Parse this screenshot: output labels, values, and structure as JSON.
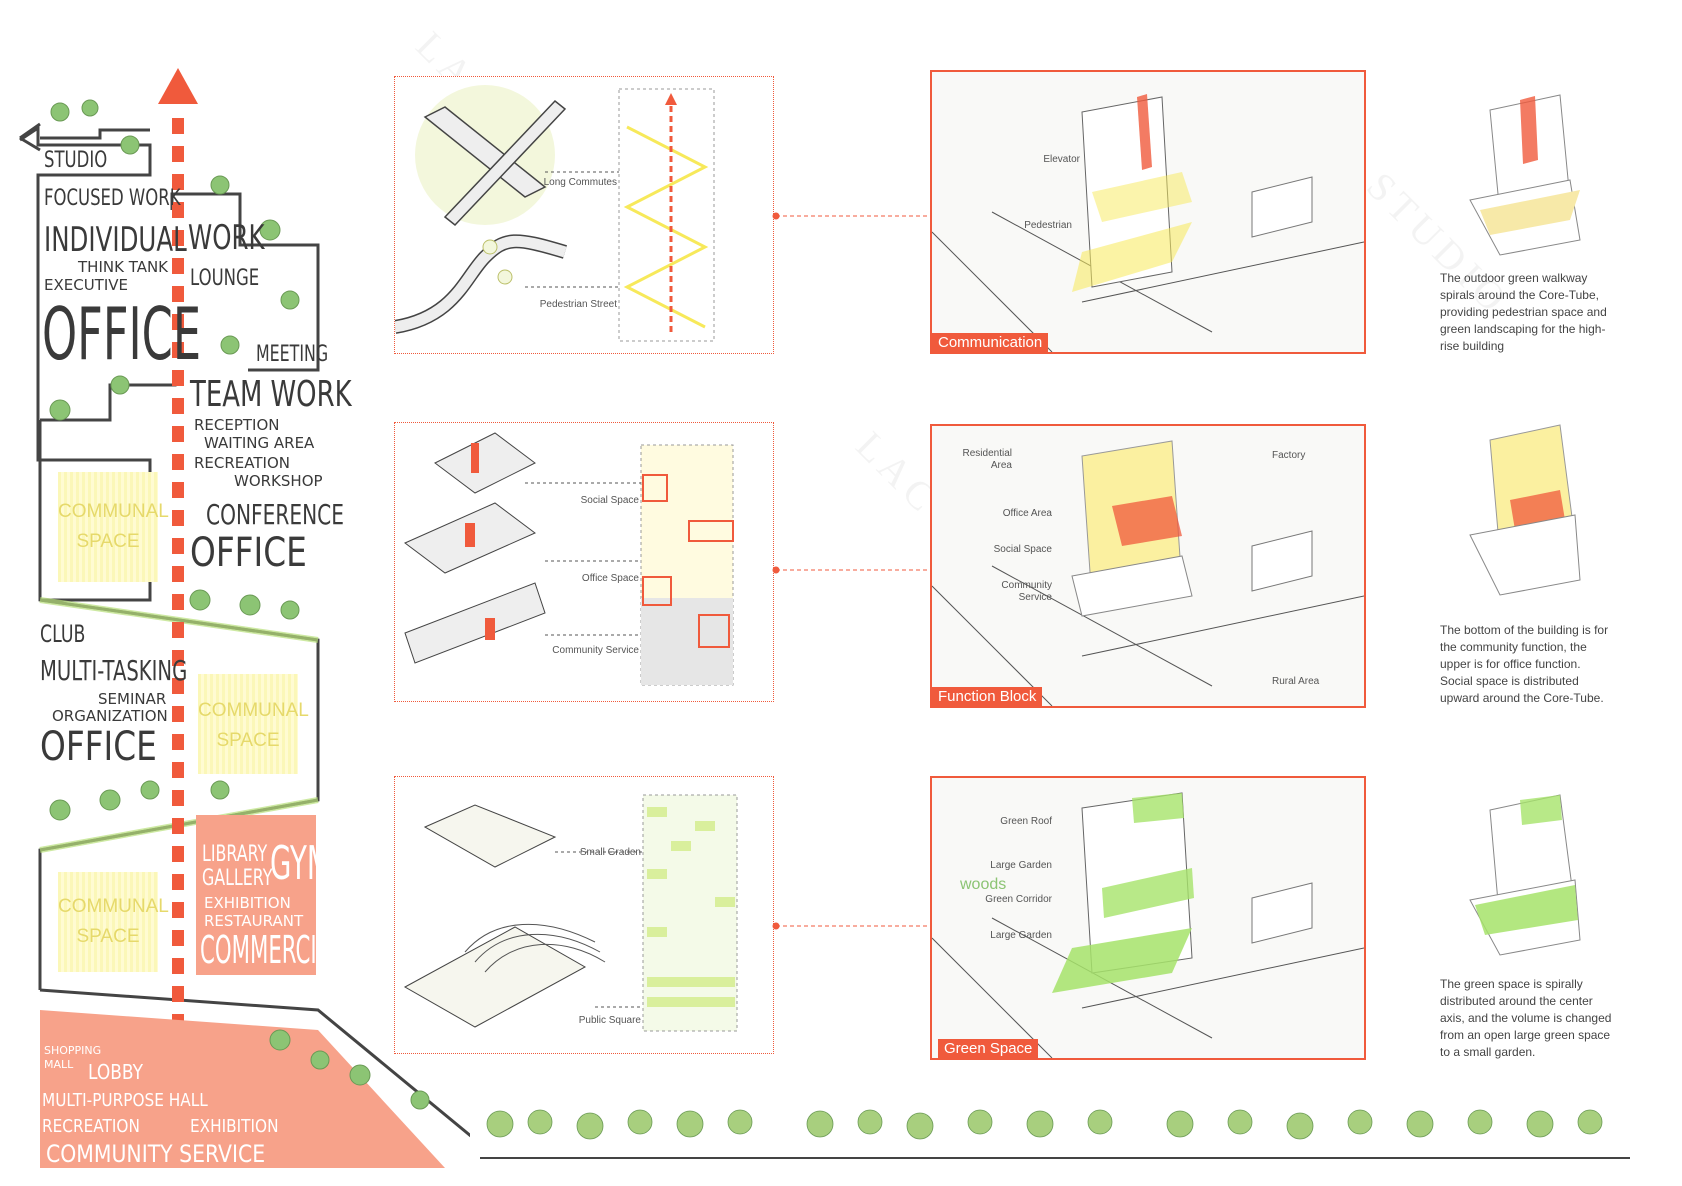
{
  "watermark": "LAC STUDIO",
  "colors": {
    "accent": "#f05a3c",
    "yellow": "#f7e95a",
    "green": "#a6e36a",
    "ink": "#3a3a3a"
  },
  "program": {
    "studio": "STUDIO",
    "focused_work": "FOCUSED WORK",
    "individual": "INDIVIDUAL",
    "work": "WORK",
    "think_tank": "THINK TANK",
    "lounge": "LOUNGE",
    "executive": "EXECUTIVE",
    "office_1": "OFFICE",
    "meeting": "MEETING",
    "team_work": "TEAM WORK",
    "reception": "RECEPTION",
    "waiting_area": "WAITING AREA",
    "recreation": "RECREATION",
    "workshop": "WORKSHOP",
    "conference": "CONFERENCE",
    "office_2": "OFFICE",
    "communal_1": "COMMUNAL SPACE",
    "club": "CLUB",
    "multi_tasking": "MULTI-TASKING",
    "seminar": "SEMINAR",
    "organization": "ORGANIZATION",
    "office_3": "OFFICE",
    "communal_2": "COMMUNAL SPACE",
    "library": "LIBRARY",
    "gallery": "GALLERY",
    "gym": "GYM",
    "exhibition": "EXHIBITION",
    "restaurant": "RESTAURANT",
    "commercial": "COMMERCIAL",
    "communal_3": "COMMUNAL SPACE",
    "shopping_mall": "SHOPPING MALL",
    "lobby": "LOBBY",
    "multi_purpose_hall": "MULTI-PURPOSE HALL",
    "recreation_2": "RECREATION",
    "exhibition_2": "EXHIBITION",
    "community_service": "COMMUNITY SERVICE"
  },
  "row1": {
    "long_commutes": "Long Commutes",
    "pedestrian_street": "Pedestrian Street",
    "elevator": "Elevator",
    "pedestrian": "Pedestrian",
    "tag": "Communication",
    "desc": "The outdoor green walkway spirals around the Core-Tube, providing pedestrian space and green landscaping for the high-rise building"
  },
  "row2": {
    "social_space": "Social Space",
    "office_space": "Office Space",
    "community_service": "Community Service",
    "residential_area": "Residential Area",
    "factory": "Factory",
    "office_area": "Office Area",
    "social_space_b": "Social Space",
    "community_service_b": "Community Service",
    "rural_area": "Rural Area",
    "tag": "Function Block",
    "desc": "The bottom of the building is for the community function, the upper is for office function. Social space is distributed upward around the Core-Tube."
  },
  "row3": {
    "small_garden": "Small Graden",
    "public_square": "Public Square",
    "green_roof": "Green Roof",
    "large_garden": "Large Garden",
    "green_corridor": "Green Corridor",
    "large_garden_2": "Large Garden",
    "woods": "woods",
    "tag": "Green Space",
    "desc": "The green space is spirally distributed around the center axis, and the volume is changed from an open large green space to a small garden."
  }
}
